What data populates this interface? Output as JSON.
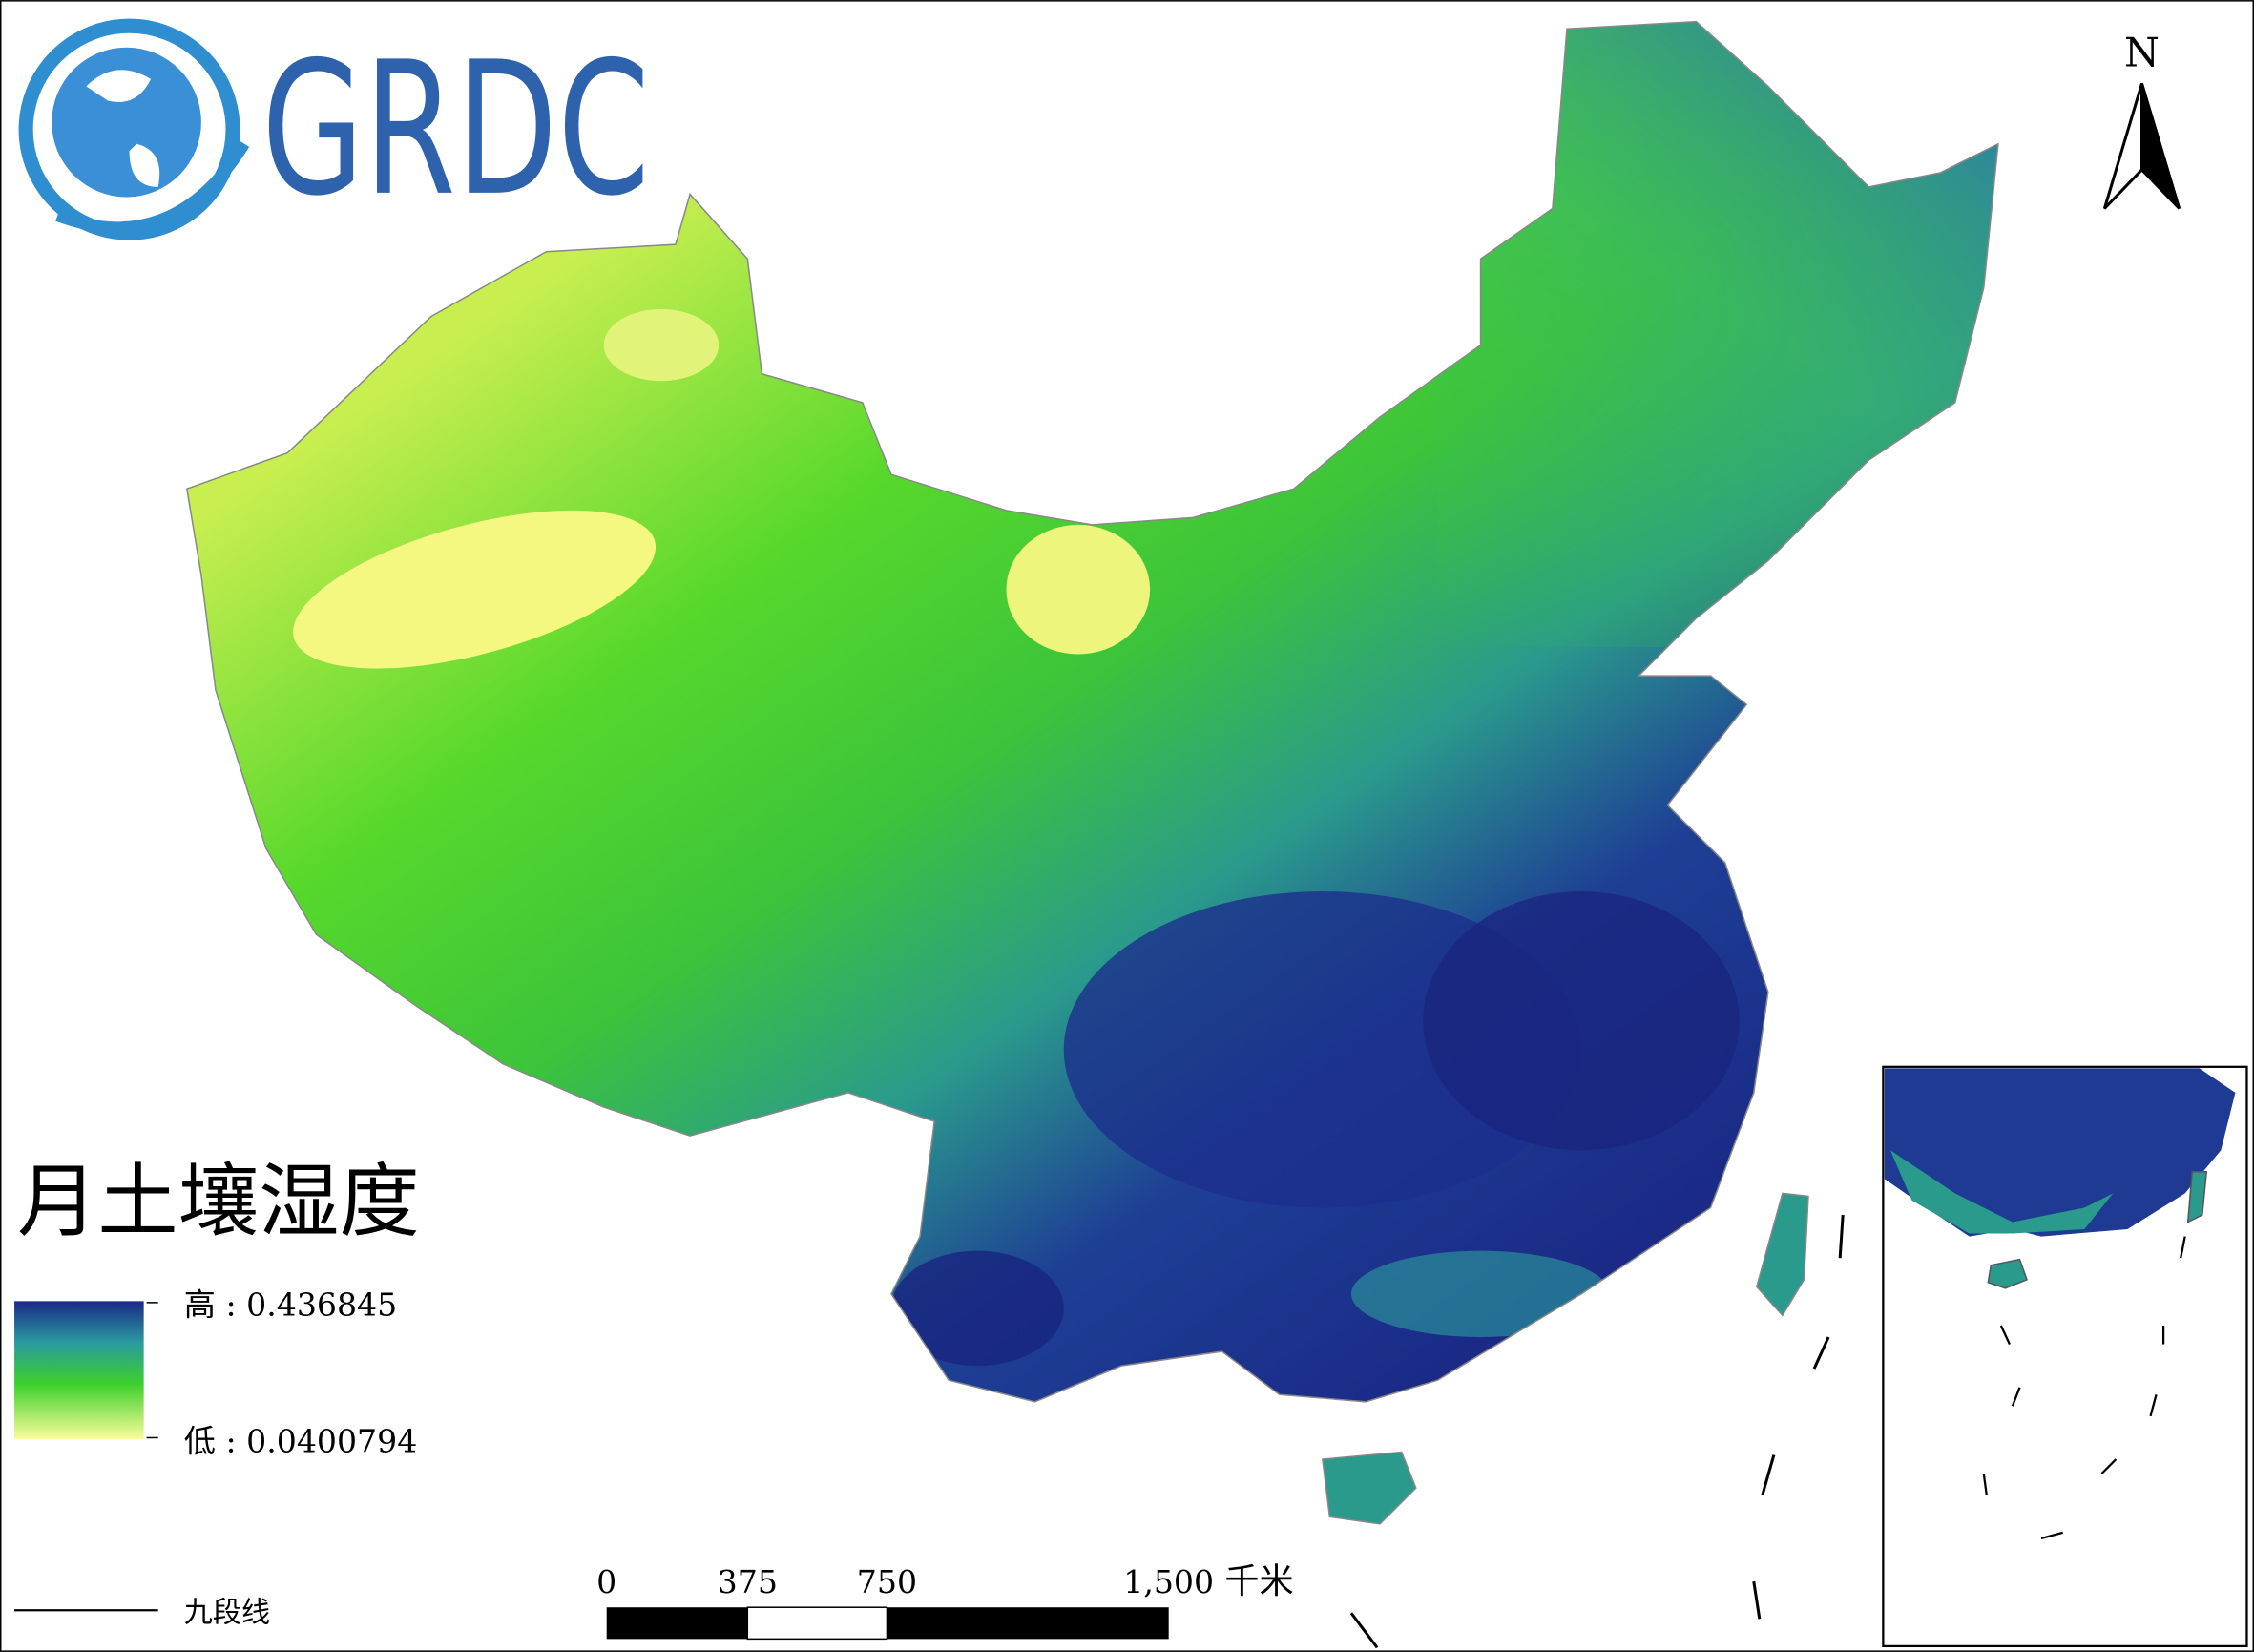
{
  "logo": {
    "text": "GRDC"
  },
  "north_arrow": {
    "label": "N"
  },
  "legend": {
    "title": "月土壤湿度",
    "high": "高 : 0.436845",
    "low": "低 : 0.0400794",
    "nine_dash_line": "九段线"
  },
  "scale_bar": {
    "ticks": [
      "0",
      "375",
      "750",
      "1,500"
    ],
    "unit": "千米"
  }
}
